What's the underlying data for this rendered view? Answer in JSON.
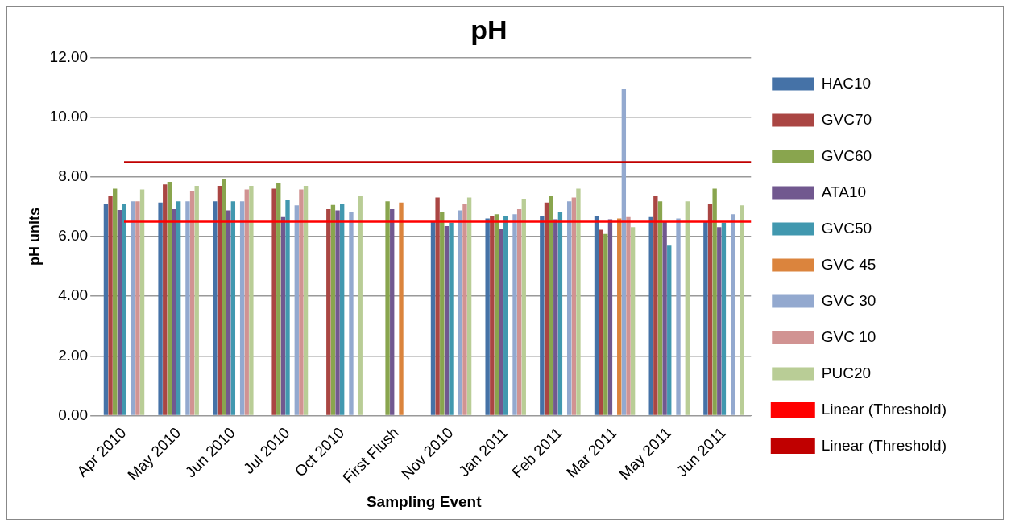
{
  "chart_data": {
    "type": "bar",
    "title": "pH",
    "xlabel": "Sampling Event",
    "ylabel": "pH units",
    "categories": [
      "Apr 2010",
      "May 2010",
      "Jun 2010",
      "Jul 2010",
      "Oct 2010",
      "First Flush",
      "Nov 2010",
      "Jan 2011",
      "Feb 2011",
      "Mar 2011",
      "May 2011",
      "Jun 2011"
    ],
    "series": [
      {
        "name": "HAC10",
        "color": "#4572a7",
        "values": [
          7.09,
          7.14,
          7.18,
          null,
          null,
          null,
          6.49,
          6.61,
          6.7,
          6.7,
          6.66,
          6.49
        ]
      },
      {
        "name": "GVC70",
        "color": "#aa4643",
        "values": [
          7.36,
          7.75,
          7.7,
          7.61,
          6.92,
          null,
          7.31,
          6.7,
          7.14,
          6.23,
          7.36,
          7.09
        ]
      },
      {
        "name": "GVC60",
        "color": "#89a54e",
        "values": [
          7.61,
          7.84,
          7.92,
          7.8,
          7.06,
          7.18,
          6.83,
          6.75,
          7.36,
          6.09,
          7.18,
          7.61
        ]
      },
      {
        "name": "ATA10",
        "color": "#71588f",
        "values": [
          6.89,
          6.92,
          6.88,
          6.66,
          6.88,
          6.92,
          6.35,
          6.27,
          6.58,
          6.58,
          6.49,
          6.32
        ]
      },
      {
        "name": "GVC50",
        "color": "#4198af",
        "values": [
          7.09,
          7.18,
          7.18,
          7.23,
          7.09,
          null,
          6.47,
          6.7,
          6.83,
          null,
          5.7,
          6.47
        ]
      },
      {
        "name": "GVC 45",
        "color": "#db843d",
        "values": [
          null,
          null,
          null,
          null,
          null,
          7.14,
          null,
          null,
          null,
          6.61,
          null,
          null
        ]
      },
      {
        "name": "GVC 30",
        "color": "#93a9cf",
        "values": [
          7.18,
          7.18,
          7.18,
          7.05,
          6.83,
          null,
          6.88,
          6.75,
          7.18,
          10.94,
          6.61,
          6.75
        ]
      },
      {
        "name": "GVC 10",
        "color": "#d19392",
        "values": [
          7.18,
          7.53,
          7.58,
          7.58,
          null,
          null,
          7.09,
          6.92,
          7.31,
          6.66,
          null,
          null
        ]
      },
      {
        "name": "PUC20",
        "color": "#b9cd96",
        "values": [
          7.58,
          7.7,
          7.7,
          7.7,
          7.35,
          null,
          7.31,
          7.27,
          7.61,
          6.32,
          7.18,
          7.05
        ]
      }
    ],
    "ylim": [
      0,
      12
    ],
    "yticks": [
      {
        "value": 0,
        "label": "0.00"
      },
      {
        "value": 2,
        "label": "2.00"
      },
      {
        "value": 4,
        "label": "4.00"
      },
      {
        "value": 6,
        "label": "6.00"
      },
      {
        "value": 8,
        "label": "8.00"
      },
      {
        "value": 10,
        "label": "10.00"
      },
      {
        "value": 12,
        "label": "12.00"
      }
    ],
    "ref_lines": [
      {
        "axis": "y",
        "value": 6.5,
        "label": "Linear (Threshold)",
        "color": "#ff0000"
      },
      {
        "axis": "y",
        "value": 8.5,
        "label": "Linear (Threshold)",
        "color": "#c00000"
      }
    ],
    "grid": "y",
    "legend": "right"
  }
}
